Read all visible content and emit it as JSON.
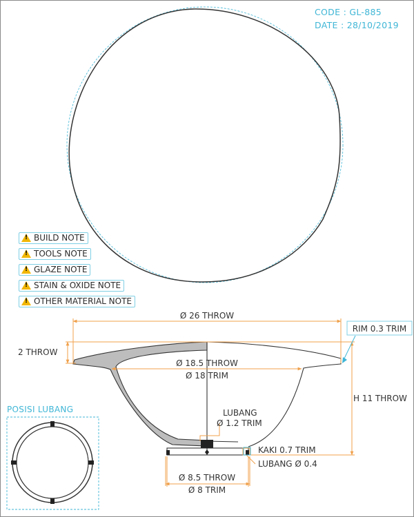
{
  "header": {
    "code": "CODE : GL-885",
    "date": "DATE : 28/10/2019"
  },
  "notes": [
    {
      "label": "BUILD NOTE",
      "icon": "warning-icon"
    },
    {
      "label": "TOOLS NOTE",
      "icon": "warning-icon"
    },
    {
      "label": "GLAZE NOTE",
      "icon": "warning-icon"
    },
    {
      "label": "STAIN & OXIDE NOTE",
      "icon": "warning-icon"
    },
    {
      "label": "OTHER MATERIAL NOTE",
      "icon": "warning-icon"
    }
  ],
  "dimensions": {
    "throw_26": "Ø 26 THROW",
    "rim": "RIM 0.3 TRIM",
    "throw_2": "2 THROW",
    "throw_18_5": "Ø 18.5 THROW",
    "trim_18": "Ø 18 TRIM",
    "h_11": "H 11 THROW",
    "lubang_title": "LUBANG",
    "lubang_size": "Ø 1.2 TRIM",
    "kaki": "KAKI 0.7 TRIM",
    "lubang_04": "LUBANG Ø 0.4",
    "throw_8_5": "Ø 8.5 THROW",
    "trim_8": "Ø 8 TRIM"
  },
  "posisi": {
    "title": "POSISI LUBANG"
  },
  "colors": {
    "accent": "#3fb6d6",
    "dimension": "#f0a04b",
    "outline": "#333333",
    "section_fill": "#bdbdbd",
    "warning": "#f2b705"
  }
}
